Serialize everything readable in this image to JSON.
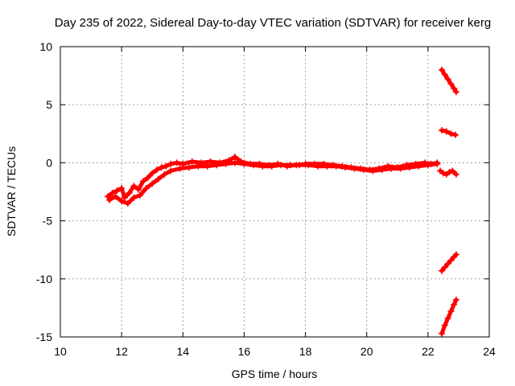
{
  "chart_data": {
    "type": "scatter",
    "title": "Day 235 of 2022, Sidereal Day-to-day VTEC variation (SDTVAR) for receiver kerg",
    "xlabel": "GPS time / hours",
    "ylabel": "SDTVAR / TECUs",
    "xlim": [
      10,
      24
    ],
    "ylim": [
      -15,
      10
    ],
    "xticks": [
      10,
      12,
      14,
      16,
      18,
      20,
      22,
      24
    ],
    "yticks": [
      -15,
      -10,
      -5,
      0,
      5,
      10
    ],
    "grid": true,
    "series": [
      {
        "name": "main",
        "color": "#ff0000",
        "x": [
          11.55,
          11.7,
          11.85,
          12.0,
          12.1,
          12.25,
          12.4,
          12.55,
          12.7,
          12.85,
          13.0,
          13.15,
          13.3,
          13.45,
          13.6,
          13.8,
          14.0,
          14.3,
          14.6,
          14.9,
          15.2,
          15.5,
          15.7,
          15.9,
          16.2,
          16.5,
          16.8,
          17.1,
          17.4,
          17.7,
          18.0,
          18.3,
          18.6,
          18.9,
          19.2,
          19.5,
          19.8,
          20.1,
          20.4,
          20.7,
          21.0,
          21.3,
          21.6,
          21.9,
          22.1,
          22.3
        ],
        "y": [
          -2.9,
          -2.6,
          -2.4,
          -2.2,
          -3.0,
          -2.6,
          -2.0,
          -2.3,
          -1.6,
          -1.3,
          -0.9,
          -0.6,
          -0.4,
          -0.3,
          -0.1,
          0.0,
          -0.1,
          0.1,
          0.0,
          0.1,
          0.0,
          0.2,
          0.5,
          0.1,
          -0.1,
          -0.1,
          -0.2,
          -0.1,
          -0.3,
          -0.2,
          -0.1,
          -0.1,
          -0.1,
          -0.2,
          -0.3,
          -0.4,
          -0.5,
          -0.6,
          -0.5,
          -0.3,
          -0.4,
          -0.2,
          -0.1,
          0.0,
          -0.1,
          0.0
        ]
      },
      {
        "name": "main-lower",
        "color": "#ff0000",
        "x": [
          11.6,
          11.8,
          12.0,
          12.2,
          12.4,
          12.6,
          12.8,
          13.0,
          13.2,
          13.4,
          13.6,
          13.9,
          14.2,
          14.5,
          14.8,
          15.1,
          15.4,
          15.7,
          16.0,
          16.3,
          16.6,
          16.9,
          17.2,
          17.5,
          17.8,
          18.1,
          18.4,
          18.7,
          19.0,
          19.3,
          19.6,
          19.9,
          20.2,
          20.5,
          20.8,
          21.1,
          21.4,
          21.7,
          22.0,
          22.3
        ],
        "y": [
          -3.2,
          -2.9,
          -3.3,
          -3.5,
          -3.0,
          -2.8,
          -2.2,
          -1.8,
          -1.4,
          -1.0,
          -0.7,
          -0.5,
          -0.4,
          -0.3,
          -0.3,
          -0.2,
          -0.1,
          0.0,
          -0.1,
          -0.2,
          -0.3,
          -0.3,
          -0.2,
          -0.2,
          -0.2,
          -0.2,
          -0.3,
          -0.3,
          -0.3,
          -0.4,
          -0.5,
          -0.6,
          -0.7,
          -0.6,
          -0.5,
          -0.5,
          -0.4,
          -0.3,
          -0.2,
          -0.1
        ]
      },
      {
        "name": "segment-a",
        "color": "#ff0000",
        "x": [
          22.45,
          22.55,
          22.65,
          22.75,
          22.85,
          22.92
        ],
        "y": [
          8.0,
          7.6,
          7.2,
          6.8,
          6.4,
          6.1
        ]
      },
      {
        "name": "segment-b",
        "color": "#ff0000",
        "x": [
          22.45,
          22.6,
          22.75,
          22.9
        ],
        "y": [
          2.8,
          2.7,
          2.5,
          2.4
        ]
      },
      {
        "name": "segment-c",
        "color": "#ff0000",
        "x": [
          22.4,
          22.5,
          22.6,
          22.7,
          22.8,
          22.92
        ],
        "y": [
          -0.7,
          -0.9,
          -1.0,
          -0.8,
          -0.7,
          -1.0
        ]
      },
      {
        "name": "segment-d",
        "color": "#ff0000",
        "x": [
          22.45,
          22.55,
          22.65,
          22.75,
          22.85,
          22.92
        ],
        "y": [
          -9.3,
          -9.0,
          -8.7,
          -8.4,
          -8.1,
          -7.9
        ]
      },
      {
        "name": "segment-e",
        "color": "#ff0000",
        "x": [
          22.45,
          22.55,
          22.65,
          22.75,
          22.85,
          22.92
        ],
        "y": [
          -14.7,
          -14.0,
          -13.4,
          -12.8,
          -12.2,
          -11.8
        ]
      }
    ]
  }
}
